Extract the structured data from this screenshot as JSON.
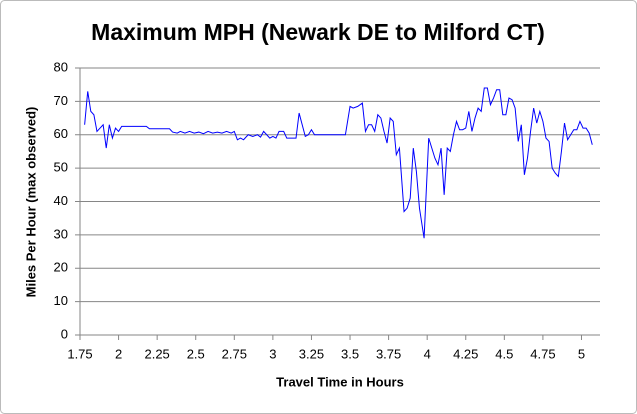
{
  "chart_data": {
    "type": "line",
    "title": "Maximum MPH (Newark DE to Milford CT)",
    "x_label": "Travel Time in Hours",
    "y_label": "Miles Per Hour (max observed)",
    "color": "#0000ff",
    "grid": true,
    "xlim": [
      1.75,
      5.12
    ],
    "xticks": [
      1.75,
      2,
      2.25,
      2.5,
      2.75,
      3,
      3.25,
      3.5,
      3.75,
      4,
      4.25,
      4.5,
      4.75,
      5
    ],
    "ylim": [
      0,
      80
    ],
    "yticks": [
      0,
      10,
      20,
      30,
      40,
      50,
      60,
      70,
      80
    ],
    "x": [
      1.78,
      1.8,
      1.82,
      1.84,
      1.86,
      1.88,
      1.9,
      1.92,
      1.94,
      1.96,
      1.98,
      2.0,
      2.02,
      2.05,
      2.1,
      2.15,
      2.18,
      2.2,
      2.25,
      2.3,
      2.33,
      2.35,
      2.38,
      2.4,
      2.43,
      2.46,
      2.49,
      2.52,
      2.55,
      2.58,
      2.61,
      2.64,
      2.67,
      2.7,
      2.73,
      2.75,
      2.77,
      2.79,
      2.81,
      2.84,
      2.87,
      2.9,
      2.92,
      2.94,
      2.96,
      2.98,
      3.0,
      3.02,
      3.04,
      3.07,
      3.09,
      3.12,
      3.15,
      3.17,
      3.19,
      3.21,
      3.23,
      3.25,
      3.27,
      3.3,
      3.35,
      3.4,
      3.45,
      3.47,
      3.5,
      3.52,
      3.55,
      3.58,
      3.6,
      3.62,
      3.64,
      3.66,
      3.68,
      3.7,
      3.72,
      3.74,
      3.76,
      3.78,
      3.8,
      3.82,
      3.85,
      3.87,
      3.89,
      3.91,
      3.93,
      3.95,
      3.98,
      4.01,
      4.03,
      4.05,
      4.07,
      4.09,
      4.11,
      4.13,
      4.15,
      4.17,
      4.19,
      4.21,
      4.23,
      4.25,
      4.27,
      4.29,
      4.31,
      4.33,
      4.35,
      4.37,
      4.39,
      4.41,
      4.43,
      4.45,
      4.47,
      4.49,
      4.51,
      4.53,
      4.55,
      4.57,
      4.59,
      4.61,
      4.63,
      4.65,
      4.67,
      4.69,
      4.71,
      4.73,
      4.75,
      4.77,
      4.79,
      4.81,
      4.83,
      4.85,
      4.87,
      4.89,
      4.91,
      4.93,
      4.95,
      4.97,
      4.99,
      5.01,
      5.03,
      5.05,
      5.07
    ],
    "values": [
      63,
      73,
      67,
      66,
      61,
      62,
      63,
      56,
      63,
      59,
      62,
      61,
      62.5,
      62.5,
      62.5,
      62.5,
      62.5,
      61.8,
      61.8,
      61.8,
      61.8,
      60.8,
      60.5,
      61,
      60.5,
      61,
      60.5,
      60.8,
      60.3,
      61,
      60.5,
      60.8,
      60.5,
      61,
      60.5,
      61,
      58.5,
      59,
      58.5,
      60,
      59.5,
      60,
      59.3,
      61,
      60,
      59,
      59.5,
      59,
      61,
      61,
      59,
      59,
      59,
      66.5,
      63,
      59.5,
      60,
      61.5,
      60,
      60,
      60,
      60,
      60,
      60,
      68.5,
      68,
      68.5,
      69.5,
      61,
      63,
      63,
      61,
      66,
      65,
      61,
      57.5,
      65,
      64,
      54,
      56,
      37,
      38,
      41,
      56,
      49,
      38,
      29,
      59,
      56,
      53,
      51,
      56,
      42,
      56,
      55,
      60,
      64,
      61.5,
      61.5,
      62,
      67,
      61,
      65,
      68,
      67,
      74,
      74,
      69,
      71,
      73.5,
      73.5,
      66,
      66,
      71,
      70.5,
      68,
      58,
      63,
      48,
      53,
      61,
      68,
      63.5,
      67,
      64,
      59,
      58,
      50,
      48.5,
      47.5,
      55,
      63.5,
      58.5,
      60,
      61.5,
      61.5,
      64,
      62,
      62,
      60.5,
      57
    ]
  }
}
